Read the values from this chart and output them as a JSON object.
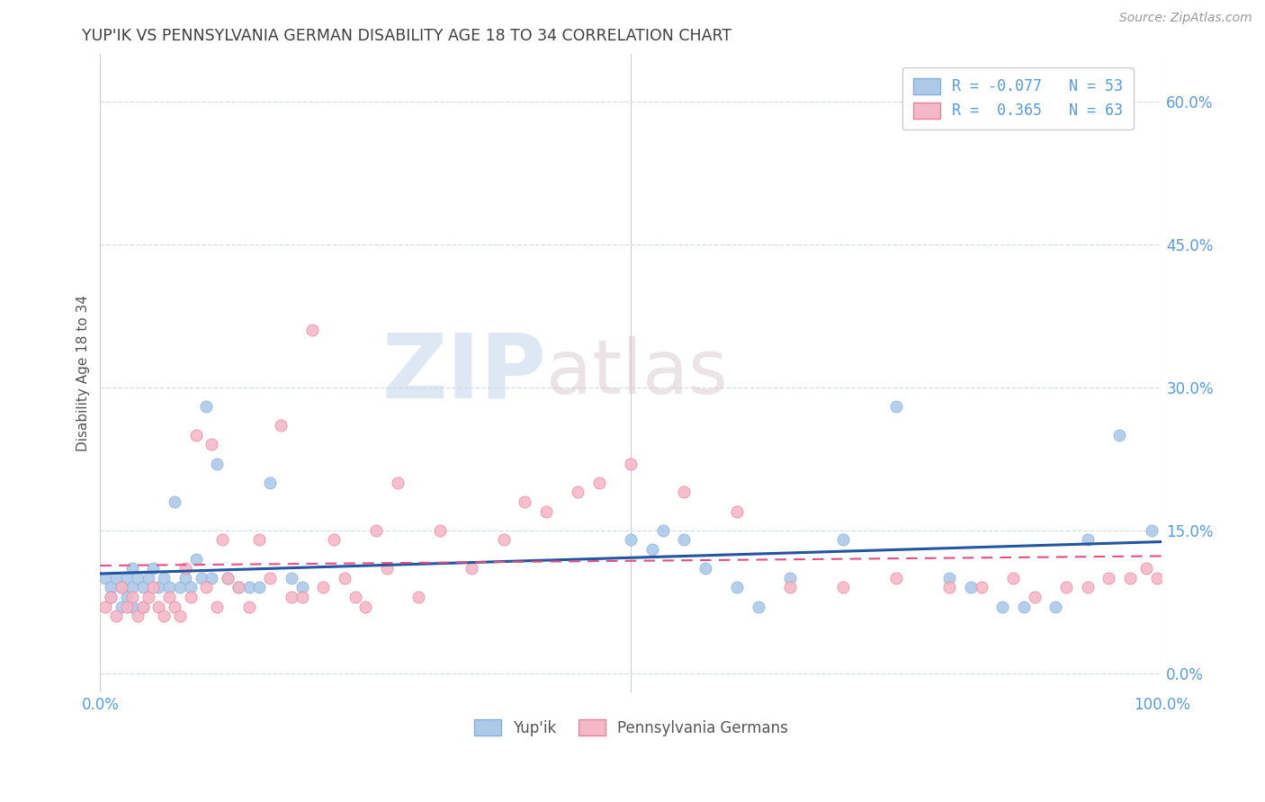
{
  "title": "YUP'IK VS PENNSYLVANIA GERMAN DISABILITY AGE 18 TO 34 CORRELATION CHART",
  "source": "Source: ZipAtlas.com",
  "ylabel": "Disability Age 18 to 34",
  "xlim": [
    0.0,
    1.0
  ],
  "ylim": [
    -0.02,
    0.65
  ],
  "yticks": [
    0.0,
    0.15,
    0.3,
    0.45,
    0.6
  ],
  "ytick_labels": [
    "0.0%",
    "15.0%",
    "30.0%",
    "45.0%",
    "60.0%"
  ],
  "xticks": [
    0.0,
    0.5,
    1.0
  ],
  "xtick_labels": [
    "0.0%",
    "",
    "100.0%"
  ],
  "watermark_top": "ZIP",
  "watermark_bottom": "atlas",
  "series": [
    {
      "name": "Yup'ik",
      "color": "#adc9e8",
      "border_color": "#89afd4",
      "R": -0.077,
      "N": 53,
      "line_color": "#2355a0",
      "x": [
        0.005,
        0.01,
        0.01,
        0.015,
        0.02,
        0.02,
        0.025,
        0.025,
        0.03,
        0.03,
        0.03,
        0.035,
        0.04,
        0.04,
        0.045,
        0.05,
        0.055,
        0.06,
        0.065,
        0.07,
        0.075,
        0.08,
        0.085,
        0.09,
        0.095,
        0.1,
        0.105,
        0.11,
        0.12,
        0.13,
        0.14,
        0.15,
        0.16,
        0.18,
        0.19,
        0.5,
        0.52,
        0.53,
        0.55,
        0.57,
        0.6,
        0.62,
        0.65,
        0.7,
        0.75,
        0.8,
        0.82,
        0.85,
        0.87,
        0.9,
        0.93,
        0.96,
        0.99
      ],
      "y": [
        0.1,
        0.09,
        0.08,
        0.1,
        0.09,
        0.07,
        0.1,
        0.08,
        0.11,
        0.09,
        0.07,
        0.1,
        0.09,
        0.07,
        0.1,
        0.11,
        0.09,
        0.1,
        0.09,
        0.18,
        0.09,
        0.1,
        0.09,
        0.12,
        0.1,
        0.28,
        0.1,
        0.22,
        0.1,
        0.09,
        0.09,
        0.09,
        0.2,
        0.1,
        0.09,
        0.14,
        0.13,
        0.15,
        0.14,
        0.11,
        0.09,
        0.07,
        0.1,
        0.14,
        0.28,
        0.1,
        0.09,
        0.07,
        0.07,
        0.07,
        0.14,
        0.25,
        0.15
      ]
    },
    {
      "name": "Pennsylvania Germans",
      "color": "#f4b8c8",
      "border_color": "#e8829a",
      "R": 0.365,
      "N": 63,
      "line_color": "#e05080",
      "x": [
        0.005,
        0.01,
        0.015,
        0.02,
        0.025,
        0.03,
        0.035,
        0.04,
        0.045,
        0.05,
        0.055,
        0.06,
        0.065,
        0.07,
        0.075,
        0.08,
        0.085,
        0.09,
        0.1,
        0.105,
        0.11,
        0.115,
        0.12,
        0.13,
        0.14,
        0.15,
        0.16,
        0.17,
        0.18,
        0.19,
        0.2,
        0.21,
        0.22,
        0.23,
        0.24,
        0.25,
        0.26,
        0.27,
        0.28,
        0.3,
        0.32,
        0.35,
        0.38,
        0.4,
        0.42,
        0.45,
        0.47,
        0.5,
        0.55,
        0.6,
        0.65,
        0.7,
        0.75,
        0.8,
        0.83,
        0.86,
        0.88,
        0.91,
        0.93,
        0.95,
        0.97,
        0.985,
        0.995
      ],
      "y": [
        0.07,
        0.08,
        0.06,
        0.09,
        0.07,
        0.08,
        0.06,
        0.07,
        0.08,
        0.09,
        0.07,
        0.06,
        0.08,
        0.07,
        0.06,
        0.11,
        0.08,
        0.25,
        0.09,
        0.24,
        0.07,
        0.14,
        0.1,
        0.09,
        0.07,
        0.14,
        0.1,
        0.26,
        0.08,
        0.08,
        0.36,
        0.09,
        0.14,
        0.1,
        0.08,
        0.07,
        0.15,
        0.11,
        0.2,
        0.08,
        0.15,
        0.11,
        0.14,
        0.18,
        0.17,
        0.19,
        0.2,
        0.22,
        0.19,
        0.17,
        0.09,
        0.09,
        0.1,
        0.09,
        0.09,
        0.1,
        0.08,
        0.09,
        0.09,
        0.1,
        0.1,
        0.11,
        0.1
      ]
    }
  ],
  "background_color": "#ffffff",
  "grid_color": "#d5dde8",
  "title_color": "#404040",
  "axis_tick_color": "#5b9bd5",
  "legend_R_color": "#5b9bd5",
  "source_color": "#999999"
}
